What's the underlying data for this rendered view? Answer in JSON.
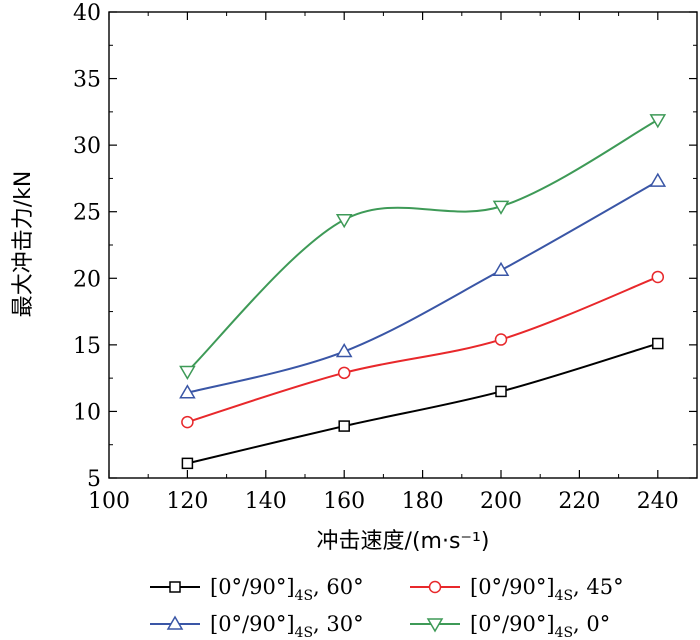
{
  "chart_data": {
    "type": "line",
    "title": "",
    "xlabel": "冲击速度/(m·s⁻¹)",
    "ylabel": "最大冲击力/kN",
    "xlim": [
      100,
      250
    ],
    "ylim": [
      5,
      40
    ],
    "xticks": [
      100,
      120,
      140,
      160,
      180,
      200,
      220,
      240
    ],
    "yticks": [
      5,
      10,
      15,
      20,
      25,
      30,
      35,
      40
    ],
    "x": [
      120,
      160,
      200,
      240
    ],
    "grid": false,
    "legend_position": "bottom",
    "series": [
      {
        "name": "[0°/90°]4S, 60°",
        "label_main": "[0°/90°]",
        "label_sub": "4S",
        "label_tail": ", 60°",
        "color": "#000000",
        "marker": "square",
        "values": [
          6.1,
          8.9,
          11.5,
          15.1
        ]
      },
      {
        "name": "[0°/90°]4S, 45°",
        "label_main": "[0°/90°]",
        "label_sub": "4S",
        "label_tail": ", 45°",
        "color": "#e8282b",
        "marker": "circle",
        "values": [
          9.2,
          12.9,
          15.4,
          20.1
        ]
      },
      {
        "name": "[0°/90°]4S, 30°",
        "label_main": "[0°/90°]",
        "label_sub": "4S",
        "label_tail": ", 30°",
        "color": "#3a56a6",
        "marker": "triangle-up",
        "values": [
          11.4,
          14.5,
          20.6,
          27.3
        ]
      },
      {
        "name": "[0°/90°]4S, 0°",
        "label_main": "[0°/90°]",
        "label_sub": "4S",
        "label_tail": ", 0°",
        "color": "#3e9a57",
        "marker": "triangle-down",
        "values": [
          13.0,
          24.4,
          25.4,
          31.9
        ]
      }
    ]
  }
}
